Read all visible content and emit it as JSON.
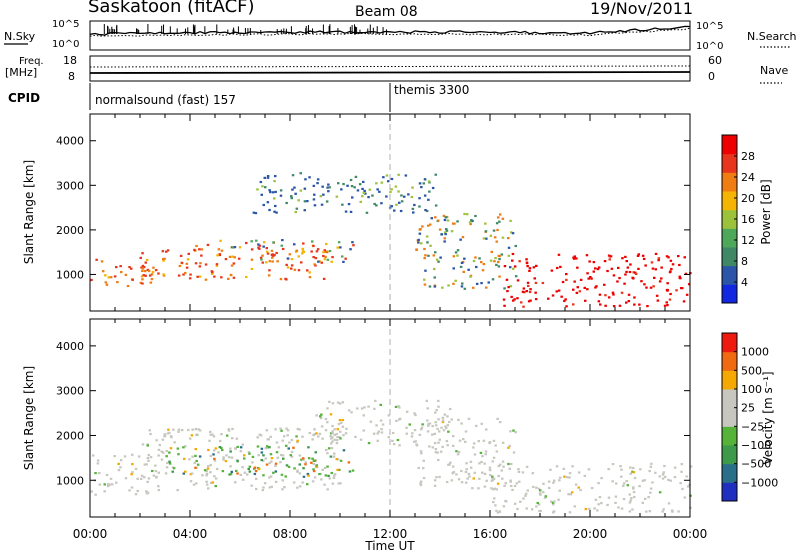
{
  "header": {
    "station": "Saskatoon (fitACF)",
    "beam": "Beam 08",
    "date": "19/Nov/2011"
  },
  "noise_panel": {
    "left_label": "N.Sky",
    "left_ticks": [
      "10^5",
      "10^0"
    ],
    "right_label": "N.Search",
    "right_ticks": [
      "10^5",
      "10^0"
    ]
  },
  "freq_panel": {
    "left_label_1": "Freq.",
    "left_label_2": "[MHz]",
    "left_ticks": [
      "18",
      "8"
    ],
    "right_label": "Nave",
    "right_ticks": [
      "60",
      "0"
    ]
  },
  "cpid": {
    "label": "CPID",
    "segments": [
      {
        "name": "normalsound (fast) 157",
        "start_hour": 0
      },
      {
        "name": "themis 3300",
        "start_hour": 12
      }
    ]
  },
  "chart_data": [
    {
      "type": "heatmap",
      "title": "",
      "xlabel": "Time UT",
      "ylabel": "Slant Range [km]",
      "xlim": [
        0,
        24
      ],
      "ylim": [
        180,
        4600
      ],
      "x_ticks": [
        "00:00",
        "04:00",
        "08:00",
        "12:00",
        "16:00",
        "20:00",
        "00:00"
      ],
      "y_ticks": [
        1000,
        2000,
        3000,
        4000
      ],
      "colorbar": {
        "label": "Power [dB]",
        "ticks": [
          "4",
          "8",
          "12",
          "16",
          "20",
          "24",
          "28"
        ],
        "colors": [
          "#1228e0",
          "#2a55a8",
          "#3f8866",
          "#4ea85a",
          "#9cc23c",
          "#f5b400",
          "#ef7d12",
          "#e8361e",
          "#ee0000"
        ]
      },
      "echo_regions": [
        {
          "t0": 0.0,
          "t1": 2.5,
          "r0": 700,
          "r1": 1400,
          "value": "red-orange"
        },
        {
          "t0": 2.0,
          "t1": 9.5,
          "r0": 900,
          "r1": 1700,
          "value": "red-orange"
        },
        {
          "t0": 5.0,
          "t1": 10.5,
          "r0": 1300,
          "r1": 1800,
          "value": "red-green-blue"
        },
        {
          "t0": 6.5,
          "t1": 14.0,
          "r0": 2400,
          "r1": 3300,
          "value": "blue-green"
        },
        {
          "t0": 13.0,
          "t1": 17.0,
          "r0": 700,
          "r1": 2400,
          "value": "orange-blue"
        },
        {
          "t0": 16.5,
          "t1": 24.0,
          "r0": 300,
          "r1": 1500,
          "value": "red"
        }
      ]
    },
    {
      "type": "heatmap",
      "title": "",
      "xlabel": "Time UT",
      "ylabel": "Slant Range [km]",
      "xlim": [
        0,
        24
      ],
      "ylim": [
        180,
        4600
      ],
      "x_ticks": [
        "00:00",
        "04:00",
        "08:00",
        "12:00",
        "16:00",
        "20:00",
        "00:00"
      ],
      "y_ticks": [
        1000,
        2000,
        3000,
        4000
      ],
      "colorbar": {
        "label": "Velocity [m s⁻¹]",
        "ticks": [
          "1000",
          "500",
          "100",
          "25",
          "−25",
          "−100",
          "−500",
          "−1000"
        ],
        "colors": [
          "#1f2fc0",
          "#2a6f8a",
          "#3c9a4a",
          "#55b33a",
          "#c7c7c0",
          "#c7c7c0",
          "#f5a800",
          "#ef6a10",
          "#ee1a10"
        ]
      },
      "echo_regions": [
        {
          "t0": 0.0,
          "t1": 3.0,
          "r0": 700,
          "r1": 1600,
          "value": "ground-scatter grey"
        },
        {
          "t0": 2.0,
          "t1": 10.0,
          "r0": 800,
          "r1": 2200,
          "value": "grey"
        },
        {
          "t0": 3.0,
          "t1": 10.5,
          "r0": 1100,
          "r1": 1800,
          "value": "green-blue-orange"
        },
        {
          "t0": 9.0,
          "t1": 14.5,
          "r0": 1800,
          "r1": 2800,
          "value": "grey"
        },
        {
          "t0": 13.0,
          "t1": 17.0,
          "r0": 800,
          "r1": 2400,
          "value": "grey"
        },
        {
          "t0": 16.0,
          "t1": 24.0,
          "r0": 300,
          "r1": 1400,
          "value": "grey"
        }
      ]
    }
  ],
  "colors": {
    "axis": "#000000",
    "divider": "#b0b0b0"
  }
}
